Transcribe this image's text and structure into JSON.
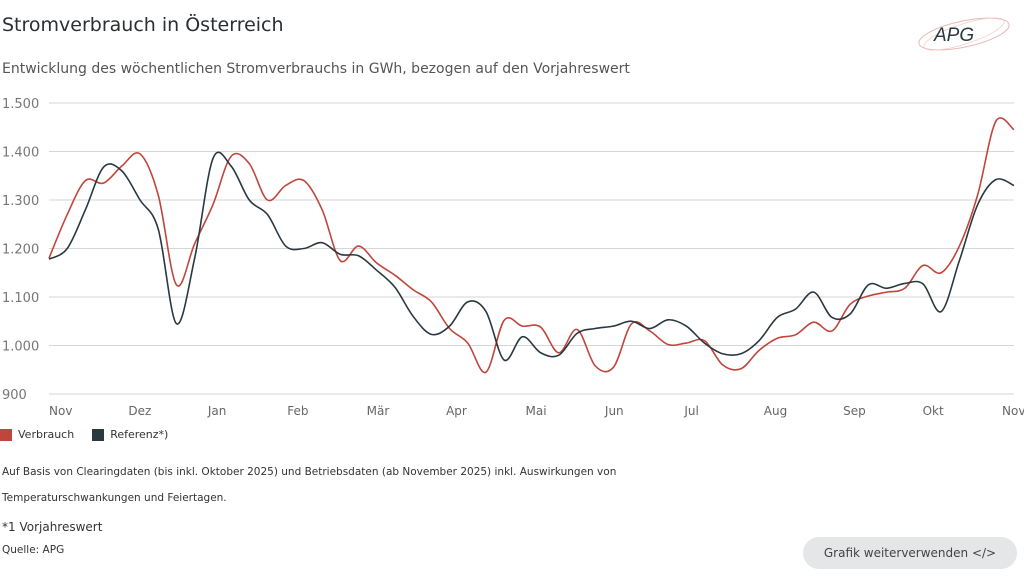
{
  "title": "Stromverbrauch in Österreich",
  "subtitle": "Entwicklung des wöchentlichen Stromverbrauchs in GWh, bezogen auf den Vorjahreswert",
  "logo_text": "APG",
  "chart_data": {
    "type": "line",
    "ylim": [
      900,
      1500
    ],
    "yticks": [
      900,
      1000,
      1100,
      1200,
      1300,
      1400,
      1500
    ],
    "ytick_labels": [
      "900",
      "1.000",
      "1.100",
      "1.200",
      "1.300",
      "1.400",
      "1.500"
    ],
    "xtick_labels": [
      "Nov",
      "Dez",
      "Jan",
      "Feb",
      "Mär",
      "Apr",
      "Mai",
      "Jun",
      "Jul",
      "Aug",
      "Sep",
      "Okt",
      "Nov"
    ],
    "grid": true,
    "legend_position": "bottom-left",
    "series": [
      {
        "name": "Verbrauch",
        "color": "#c0463c",
        "values": [
          1180,
          1270,
          1340,
          1335,
          1370,
          1395,
          1310,
          1125,
          1210,
          1290,
          1390,
          1375,
          1300,
          1330,
          1340,
          1280,
          1175,
          1205,
          1170,
          1145,
          1115,
          1090,
          1035,
          1005,
          945,
          1052,
          1040,
          1038,
          985,
          1033,
          958,
          955,
          1045,
          1030,
          1002,
          1005,
          1010,
          960,
          952,
          990,
          1015,
          1022,
          1048,
          1030,
          1085,
          1102,
          1110,
          1118,
          1165,
          1150,
          1205,
          1310,
          1462,
          1445
        ]
      },
      {
        "name": "Referenz*)",
        "color": "#2a3840",
        "values": [
          1178,
          1200,
          1280,
          1368,
          1360,
          1300,
          1240,
          1045,
          1180,
          1385,
          1370,
          1300,
          1270,
          1205,
          1200,
          1212,
          1188,
          1185,
          1155,
          1120,
          1060,
          1023,
          1040,
          1090,
          1070,
          970,
          1018,
          985,
          980,
          1025,
          1035,
          1040,
          1050,
          1035,
          1053,
          1040,
          1005,
          983,
          983,
          1010,
          1058,
          1075,
          1110,
          1058,
          1065,
          1125,
          1118,
          1128,
          1127,
          1070,
          1175,
          1290,
          1342,
          1330
        ]
      }
    ]
  },
  "notes": [
    "Auf Basis von Clearingdaten (bis inkl. Oktober 2025) und Betriebsdaten (ab November 2025) inkl. Auswirkungen von",
    "Temperaturschwankungen und Feiertagen."
  ],
  "footnote": "*1 Vorjahreswert",
  "source": "Quelle: APG",
  "button_label": "Grafik weiterverwenden </>"
}
